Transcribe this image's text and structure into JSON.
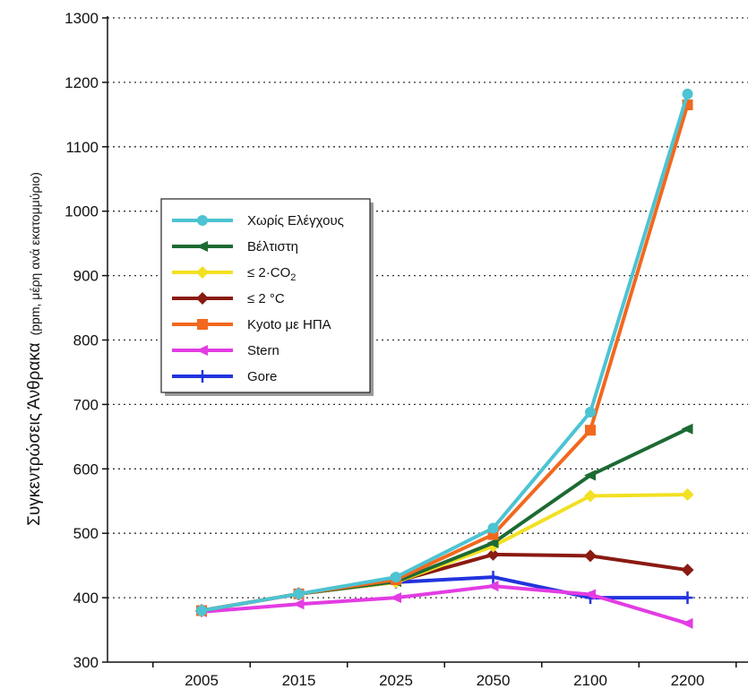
{
  "chart_data": {
    "type": "line",
    "title": "",
    "xlabel": "",
    "ylabel": "Συγκεντρώσεις Άνθρακα",
    "ylabel_unit": "(ppm, μέρη ανά εκατομμύριο)",
    "categories": [
      "2005",
      "2015",
      "2025",
      "2050",
      "2100",
      "2200"
    ],
    "ylim": [
      300,
      1300
    ],
    "yticks": [
      "300",
      "400",
      "500",
      "600",
      "700",
      "800",
      "900",
      "1000",
      "1100",
      "1200",
      "1300"
    ],
    "grid": "horizontal dotted",
    "legend_position": "left-middle",
    "series": [
      {
        "name": "Χωρίς Ελέγχους",
        "color": "#4dc3d3",
        "marker": "circle",
        "values": [
          380,
          406,
          432,
          508,
          688,
          1182
        ]
      },
      {
        "name": "Βέλτιστη",
        "color": "#1d6a33",
        "marker": "triangle-left",
        "values": [
          380,
          406,
          425,
          485,
          590,
          662
        ]
      },
      {
        "name": "≤ 2·CO",
        "name_subscript": "2",
        "color": "#f2e022",
        "marker": "diamond",
        "values": [
          380,
          406,
          424,
          480,
          558,
          560
        ]
      },
      {
        "name": "≤ 2 °C",
        "color": "#8a1a12",
        "marker": "diamond",
        "values": [
          380,
          406,
          425,
          467,
          465,
          443
        ]
      },
      {
        "name": "Kyoto με ΗΠΑ",
        "color": "#f2681e",
        "marker": "square",
        "values": [
          380,
          406,
          428,
          498,
          660,
          1165
        ]
      },
      {
        "name": "Stern",
        "color": "#e33ce3",
        "marker": "triangle-left",
        "values": [
          378,
          390,
          400,
          418,
          405,
          360
        ]
      },
      {
        "name": "Gore",
        "color": "#2233dd",
        "marker": "plus",
        "values": [
          380,
          406,
          424,
          432,
          400,
          400
        ]
      }
    ]
  }
}
